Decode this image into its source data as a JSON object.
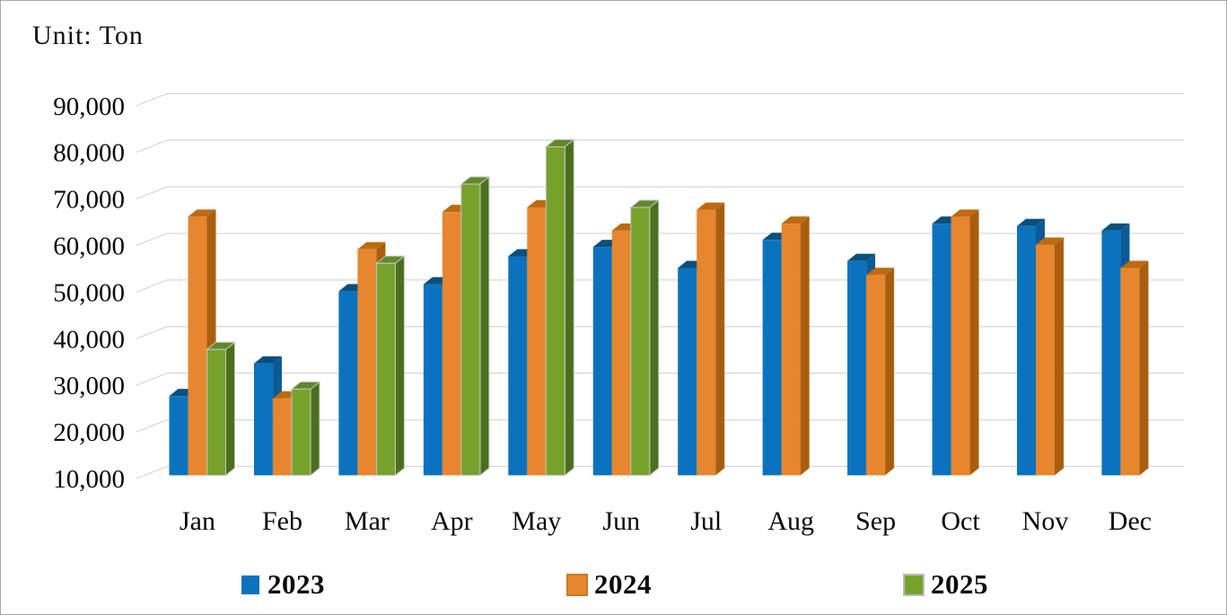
{
  "window": {
    "background": "#ffffff",
    "border_color": "#a8a8a8"
  },
  "chart_data": {
    "type": "bar",
    "style": "3d-clustered-column",
    "title": "Unit: Ton",
    "categories": [
      "Jan",
      "Feb",
      "Mar",
      "Apr",
      "May",
      "Jun",
      "Jul",
      "Aug",
      "Sep",
      "Oct",
      "Nov",
      "Dec"
    ],
    "series": [
      {
        "name": "2023",
        "color": "#0b73bd",
        "color_top": "#0a4f7e",
        "color_side": "#0a5b95",
        "marker_border": null,
        "values": [
          27000,
          34000,
          49500,
          51000,
          57000,
          59000,
          54500,
          60500,
          56000,
          64000,
          63500,
          62500
        ]
      },
      {
        "name": "2024",
        "color": "#e6862f",
        "color_top": "#bd6a10",
        "color_side": "#a95e0e",
        "marker_border": "#c97a1e",
        "values": [
          65500,
          26500,
          58500,
          66500,
          67500,
          62500,
          67000,
          64000,
          53000,
          65500,
          59500,
          54500
        ]
      },
      {
        "name": "2025",
        "color": "#76a22c",
        "color_top": "#61892a",
        "color_side": "#4a701e",
        "marker_border": "#bdbdbd",
        "values": [
          37000,
          28500,
          55500,
          72500,
          80500,
          67500,
          null,
          null,
          null,
          null,
          null,
          null
        ]
      }
    ],
    "ylim": [
      10000,
      90000
    ],
    "ytick_interval": 10000,
    "ytick_labels": [
      "90,000",
      "80,000",
      "70,000",
      "60,000",
      "50,000",
      "40,000",
      "30,000",
      "20,000",
      "10,000"
    ],
    "grid": true,
    "gridline_color": "#d9d9d9",
    "legend_position": "bottom"
  }
}
